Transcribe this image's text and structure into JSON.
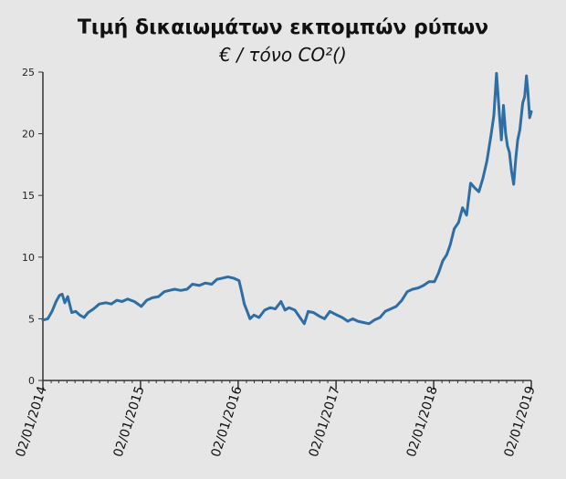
{
  "chart_data": {
    "type": "line",
    "title": "Τιμή δικαιωμάτων εκπομπών ρύπων",
    "subtitle": "€ / τόνο CO²()",
    "xlabel": "",
    "ylabel": "",
    "ylim": [
      0,
      25
    ],
    "y_ticks": [
      0,
      5,
      10,
      15,
      20,
      25
    ],
    "x_range": [
      "2014-01-02",
      "2019-01-02"
    ],
    "x_ticks": [
      "02/01/2014",
      "02/01/2015",
      "02/01/2016",
      "02/01/2017",
      "02/01/2018",
      "02/01/2019"
    ],
    "grid": false,
    "colors": {
      "line": "#2e6ea5",
      "background": "#e6e6e6",
      "axis": "#333333"
    },
    "series": [
      {
        "points": [
          [
            "2014-01-02",
            4.9
          ],
          [
            "2014-01-20",
            5.0
          ],
          [
            "2014-02-05",
            5.6
          ],
          [
            "2014-02-20",
            6.4
          ],
          [
            "2014-03-05",
            6.9
          ],
          [
            "2014-03-15",
            7.0
          ],
          [
            "2014-03-25",
            6.3
          ],
          [
            "2014-04-05",
            6.8
          ],
          [
            "2014-04-20",
            5.5
          ],
          [
            "2014-05-05",
            5.6
          ],
          [
            "2014-05-20",
            5.3
          ],
          [
            "2014-06-05",
            5.1
          ],
          [
            "2014-06-20",
            5.5
          ],
          [
            "2014-07-10",
            5.8
          ],
          [
            "2014-08-01",
            6.2
          ],
          [
            "2014-08-25",
            6.3
          ],
          [
            "2014-09-15",
            6.2
          ],
          [
            "2014-10-05",
            6.5
          ],
          [
            "2014-10-25",
            6.4
          ],
          [
            "2014-11-15",
            6.6
          ],
          [
            "2014-12-10",
            6.4
          ],
          [
            "2015-01-05",
            6.0
          ],
          [
            "2015-01-25",
            6.5
          ],
          [
            "2015-02-15",
            6.7
          ],
          [
            "2015-03-10",
            6.8
          ],
          [
            "2015-04-01",
            7.2
          ],
          [
            "2015-04-20",
            7.3
          ],
          [
            "2015-05-10",
            7.4
          ],
          [
            "2015-06-01",
            7.3
          ],
          [
            "2015-06-25",
            7.4
          ],
          [
            "2015-07-15",
            7.8
          ],
          [
            "2015-08-10",
            7.7
          ],
          [
            "2015-09-01",
            7.9
          ],
          [
            "2015-09-25",
            7.8
          ],
          [
            "2015-10-15",
            8.2
          ],
          [
            "2015-11-05",
            8.3
          ],
          [
            "2015-11-25",
            8.4
          ],
          [
            "2015-12-15",
            8.3
          ],
          [
            "2016-01-05",
            8.1
          ],
          [
            "2016-01-15",
            7.2
          ],
          [
            "2016-01-25",
            6.2
          ],
          [
            "2016-02-05",
            5.6
          ],
          [
            "2016-02-15",
            5.0
          ],
          [
            "2016-03-01",
            5.3
          ],
          [
            "2016-03-20",
            5.1
          ],
          [
            "2016-04-10",
            5.7
          ],
          [
            "2016-05-01",
            5.9
          ],
          [
            "2016-05-20",
            5.8
          ],
          [
            "2016-06-10",
            6.4
          ],
          [
            "2016-06-25",
            5.7
          ],
          [
            "2016-07-10",
            5.9
          ],
          [
            "2016-08-01",
            5.7
          ],
          [
            "2016-08-20",
            5.1
          ],
          [
            "2016-09-05",
            4.6
          ],
          [
            "2016-09-20",
            5.6
          ],
          [
            "2016-10-10",
            5.5
          ],
          [
            "2016-11-01",
            5.2
          ],
          [
            "2016-11-20",
            5.0
          ],
          [
            "2016-12-10",
            5.6
          ],
          [
            "2017-01-05",
            5.3
          ],
          [
            "2017-01-25",
            5.1
          ],
          [
            "2017-02-15",
            4.8
          ],
          [
            "2017-03-05",
            5.0
          ],
          [
            "2017-03-25",
            4.8
          ],
          [
            "2017-04-15",
            4.7
          ],
          [
            "2017-05-05",
            4.6
          ],
          [
            "2017-05-25",
            4.9
          ],
          [
            "2017-06-15",
            5.1
          ],
          [
            "2017-07-05",
            5.6
          ],
          [
            "2017-07-25",
            5.8
          ],
          [
            "2017-08-15",
            6.0
          ],
          [
            "2017-09-05",
            6.5
          ],
          [
            "2017-09-25",
            7.2
          ],
          [
            "2017-10-15",
            7.4
          ],
          [
            "2017-11-05",
            7.5
          ],
          [
            "2017-11-25",
            7.7
          ],
          [
            "2017-12-15",
            8.0
          ],
          [
            "2018-01-05",
            8.0
          ],
          [
            "2018-01-20",
            8.7
          ],
          [
            "2018-02-05",
            9.7
          ],
          [
            "2018-02-20",
            10.2
          ],
          [
            "2018-03-05",
            11.0
          ],
          [
            "2018-03-20",
            12.3
          ],
          [
            "2018-04-05",
            12.8
          ],
          [
            "2018-04-20",
            14.0
          ],
          [
            "2018-05-05",
            13.4
          ],
          [
            "2018-05-20",
            16.0
          ],
          [
            "2018-06-05",
            15.6
          ],
          [
            "2018-06-20",
            15.3
          ],
          [
            "2018-07-05",
            16.4
          ],
          [
            "2018-07-20",
            17.8
          ],
          [
            "2018-08-05",
            20.0
          ],
          [
            "2018-08-15",
            21.5
          ],
          [
            "2018-08-25",
            24.9
          ],
          [
            "2018-09-05",
            21.5
          ],
          [
            "2018-09-12",
            19.5
          ],
          [
            "2018-09-20",
            22.3
          ],
          [
            "2018-09-28",
            20.0
          ],
          [
            "2018-10-05",
            19.0
          ],
          [
            "2018-10-12",
            18.5
          ],
          [
            "2018-10-20",
            17.0
          ],
          [
            "2018-10-28",
            15.9
          ],
          [
            "2018-11-05",
            18.0
          ],
          [
            "2018-11-12",
            19.5
          ],
          [
            "2018-11-20",
            20.3
          ],
          [
            "2018-12-01",
            22.5
          ],
          [
            "2018-12-08",
            23.0
          ],
          [
            "2018-12-15",
            24.7
          ],
          [
            "2018-12-20",
            23.5
          ],
          [
            "2018-12-27",
            21.3
          ],
          [
            "2019-01-02",
            21.8
          ]
        ]
      }
    ]
  }
}
